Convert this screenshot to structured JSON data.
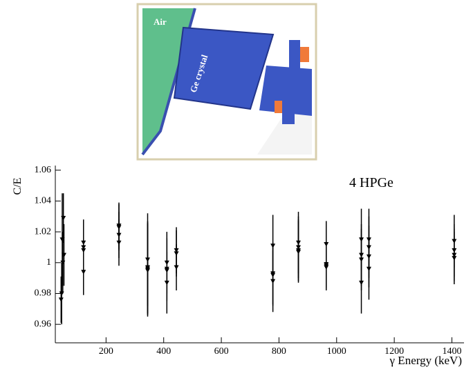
{
  "diagram": {
    "labels": [
      "Air",
      "Ge crystal"
    ]
  },
  "chart_data": {
    "type": "errorbar",
    "annotation": "4 HPGe",
    "y_label": "C/E",
    "x_label": "γ Energy (keV)",
    "color": "#000000",
    "x": [
      44,
      46,
      48,
      50,
      52,
      54,
      121.8,
      121.8,
      121.8,
      121.8,
      244.7,
      244.7,
      244.7,
      244.7,
      344.3,
      344.3,
      344.3,
      344.3,
      411,
      411,
      411,
      411,
      444,
      444,
      444,
      778.9,
      778.9,
      778.9,
      778.9,
      867.4,
      867.4,
      867.4,
      867.4,
      964,
      964,
      964,
      964,
      1085.8,
      1085.8,
      1085.8,
      1085.8,
      1112,
      1112,
      1112,
      1112,
      1408,
      1408,
      1408,
      1408
    ],
    "y": [
      0.976,
      0.98,
      1.015,
      1.0,
      1.029,
      1.005,
      1.013,
      1.01,
      1.008,
      0.994,
      1.024,
      1.023,
      1.018,
      1.013,
      1.002,
      0.997,
      0.995,
      0.996,
      1.0,
      0.996,
      0.995,
      0.987,
      1.008,
      1.006,
      0.997,
      1.011,
      0.993,
      0.992,
      0.988,
      1.013,
      1.01,
      1.007,
      1.008,
      1.012,
      0.999,
      0.997,
      0.998,
      1.015,
      1.005,
      1.002,
      0.987,
      1.015,
      1.004,
      0.996,
      1.01,
      1.014,
      1.008,
      1.005,
      1.003
    ],
    "errors": [
      0.015,
      0.02,
      0.03,
      0.02,
      0.016,
      0.02,
      0.015,
      0.015,
      0.015,
      0.015,
      0.015,
      0.015,
      0.015,
      0.015,
      0.03,
      0.03,
      0.03,
      0.03,
      0.02,
      0.02,
      0.02,
      0.02,
      0.015,
      0.015,
      0.015,
      0.02,
      0.02,
      0.02,
      0.02,
      0.02,
      0.02,
      0.02,
      0.02,
      0.015,
      0.015,
      0.015,
      0.015,
      0.02,
      0.02,
      0.02,
      0.02,
      0.02,
      0.02,
      0.02,
      0.02,
      0.017,
      0.017,
      0.017,
      0.017
    ],
    "xlim": [
      24,
      1442
    ],
    "xticks": [
      200,
      400,
      600,
      800,
      1000,
      1200,
      1400
    ],
    "ylim": [
      0.948,
      1.063
    ],
    "yticks": [
      0.96,
      0.98,
      1,
      1.02,
      1.04,
      1.06
    ]
  }
}
